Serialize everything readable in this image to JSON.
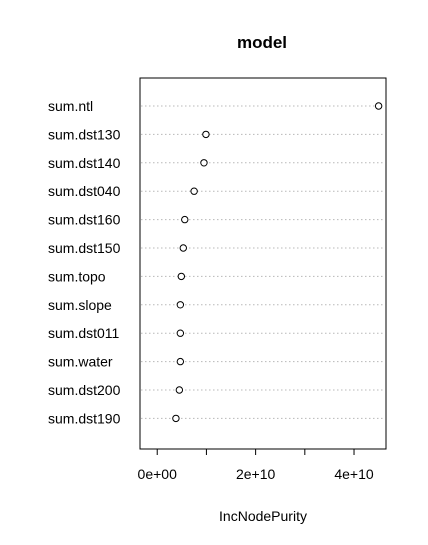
{
  "chart_data": {
    "type": "scatter",
    "title": "model",
    "xlabel": "IncNodePurity",
    "ylabel": "",
    "xlim": [
      -3500000000,
      46500000000
    ],
    "x_ticks": [
      0,
      20000000000,
      40000000000
    ],
    "x_tick_labels": [
      "0e+00",
      "2e+10",
      "4e+10"
    ],
    "grid": "dotted horizontal lines per row",
    "categories": [
      "sum.ntl",
      "sum.dst130",
      "sum.dst140",
      "sum.dst040",
      "sum.dst160",
      "sum.dst150",
      "sum.topo",
      "sum.slope",
      "sum.dst011",
      "sum.water",
      "sum.dst200",
      "sum.dst190"
    ],
    "values": [
      45000000000,
      9900000000,
      9500000000,
      7500000000,
      5600000000,
      5300000000,
      4900000000,
      4700000000,
      4700000000,
      4700000000,
      4500000000,
      3800000000
    ]
  }
}
